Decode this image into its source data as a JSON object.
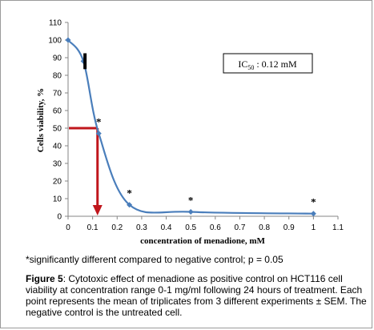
{
  "chart_data": {
    "type": "scatter",
    "xlabel": "concentration of menadione, mM",
    "ylabel": "Cells viability, %",
    "xlim": [
      0,
      1.1
    ],
    "ylim": [
      0,
      110
    ],
    "xticks": [
      0,
      0.1,
      0.2,
      0.3,
      0.4,
      0.5,
      0.6,
      0.7,
      0.8,
      0.9,
      1,
      1.1
    ],
    "xtick_labels": [
      "0",
      "0.1",
      "0.2",
      "0.3",
      "0.4",
      "0.5",
      "0.6",
      "0.7",
      "0.8",
      "0.9",
      "1",
      "1.1"
    ],
    "yticks": [
      0,
      10,
      20,
      30,
      40,
      50,
      60,
      70,
      80,
      90,
      100,
      110
    ],
    "ytick_labels": [
      "0",
      "10",
      "20",
      "30",
      "40",
      "50",
      "60",
      "70",
      "80",
      "90",
      "100",
      "110"
    ],
    "grid": false,
    "series": [
      {
        "x": [
          0,
          0.0625,
          0.125,
          0.25,
          0.5,
          1
        ],
        "y": [
          100,
          88,
          47,
          6.5,
          2.5,
          1.5
        ],
        "error": [
          0,
          4.5,
          0,
          0,
          0,
          0
        ],
        "significance": [
          "",
          "",
          "*",
          "*",
          "*",
          "*"
        ],
        "line_color": "#4a7ebb",
        "marker_color": "#4a7ebb",
        "smooth": true
      }
    ],
    "annotations": {
      "ic50_box": "IC",
      "ic50_sub": "50",
      "ic50_value": " : 0.12 mM",
      "ic50_x": 0.12,
      "ic50_y": 50,
      "ic50_color": "#c0161c"
    }
  },
  "note": "*significantly different compared to negative control; p = 0.05",
  "caption": {
    "label": "Figure 5",
    "text": ": Cytotoxic effect of menadione as positive control on HCT116 cell viability at concentration range 0-1 mg/ml following 24 hours of treatment. Each point represents the mean of triplicates from 3 different experiments ± SEM. The negative control is the untreated cell."
  }
}
